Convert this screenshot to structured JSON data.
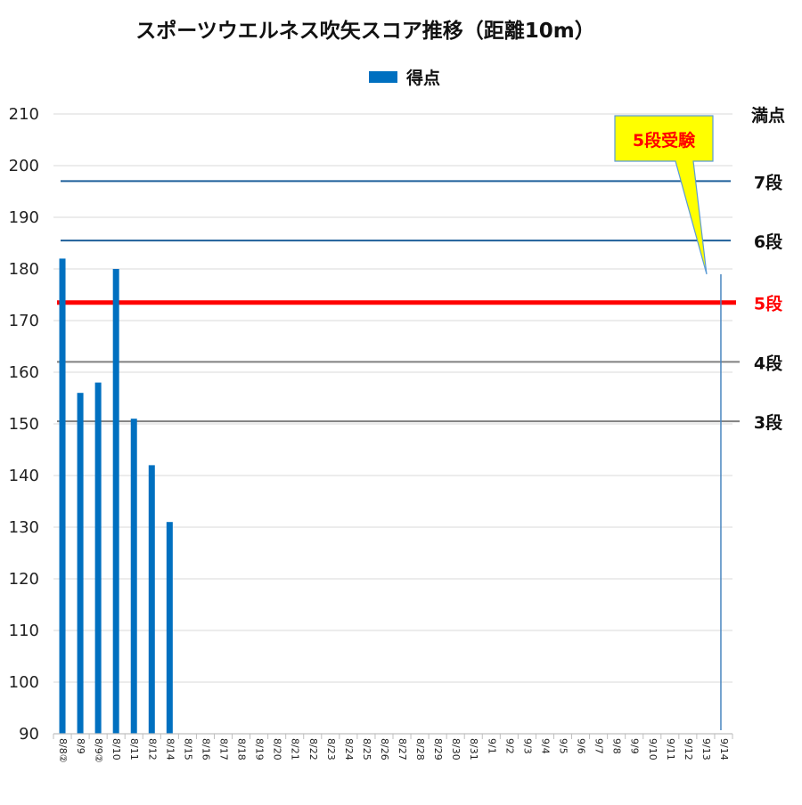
{
  "chart_data": {
    "type": "bar",
    "title": "スポーツウエルネス吹矢スコア推移（距離10m）",
    "legend": {
      "position": "top-center",
      "entries": [
        {
          "name": "得点",
          "color": "#0070c0"
        }
      ]
    },
    "xlabel": "",
    "ylabel": "",
    "ylim": [
      90,
      210
    ],
    "yticks": [
      90,
      100,
      110,
      120,
      130,
      140,
      150,
      160,
      170,
      180,
      190,
      200,
      210
    ],
    "grid": true,
    "categories": [
      "8/8②",
      "8/9",
      "8/9②",
      "8/10",
      "8/11",
      "8/12",
      "8/14",
      "8/15",
      "8/16",
      "8/17",
      "8/18",
      "8/19",
      "8/20",
      "8/21",
      "8/22",
      "8/23",
      "8/24",
      "8/25",
      "8/26",
      "8/27",
      "8/28",
      "8/29",
      "8/30",
      "8/31",
      "9/1",
      "9/2",
      "9/3",
      "9/4",
      "9/5",
      "9/6",
      "9/7",
      "9/8",
      "9/9",
      "9/10",
      "9/11",
      "9/12",
      "9/13",
      "9/14"
    ],
    "series": [
      {
        "name": "得点",
        "color": "#0070c0",
        "values": [
          182,
          156,
          158,
          180,
          151,
          142,
          131,
          null,
          null,
          null,
          null,
          null,
          null,
          null,
          null,
          null,
          null,
          null,
          null,
          null,
          null,
          null,
          null,
          null,
          null,
          null,
          null,
          null,
          null,
          null,
          null,
          null,
          null,
          null,
          null,
          null,
          null,
          null
        ]
      }
    ],
    "reference_lines": [
      {
        "label": "満点",
        "value": 210,
        "color": "#d9d9d9",
        "label_color": "#111111"
      },
      {
        "label": "7段",
        "value": 197,
        "color": "#1f5f9a",
        "label_color": "#111111"
      },
      {
        "label": "6段",
        "value": 185.5,
        "color": "#1f5f9a",
        "label_color": "#111111"
      },
      {
        "label": "5段",
        "value": 173.5,
        "color": "#ff0000",
        "label_color": "#ff0000"
      },
      {
        "label": "4段",
        "value": 162,
        "color": "#808080",
        "label_color": "#111111"
      },
      {
        "label": "3段",
        "value": 150.5,
        "color": "#808080",
        "label_color": "#111111"
      }
    ],
    "event_marker": {
      "category": "9/14",
      "label": "5段受験",
      "label_color": "#ff0000",
      "box_color": "#ffff00",
      "line_color": "#4a86c0"
    }
  }
}
